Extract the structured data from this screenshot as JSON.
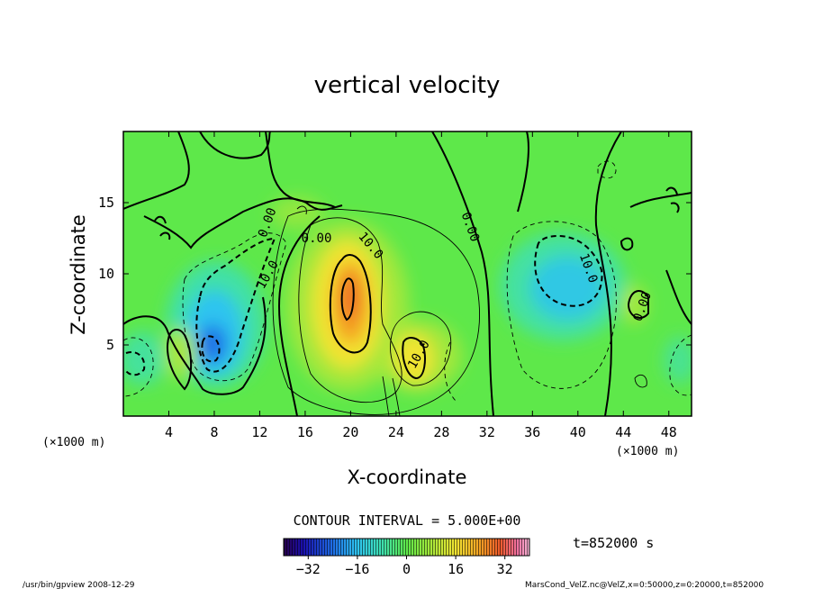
{
  "chart_data": {
    "type": "heatmap",
    "title": "vertical velocity",
    "xlabel": "X-coordinate",
    "ylabel": "Z-coordinate",
    "x_unit": "(×1000 m)",
    "y_unit": "(×1000 m)",
    "xlim": [
      0,
      50
    ],
    "ylim": [
      0,
      20
    ],
    "x_ticks": [
      4,
      8,
      12,
      16,
      20,
      24,
      28,
      32,
      36,
      40,
      44,
      48
    ],
    "y_ticks": [
      5,
      10,
      15
    ],
    "contour_interval_text": "CONTOUR INTERVAL = 5.000E+00",
    "time_text": "t=852000 s",
    "colorbar": {
      "min": -40,
      "max": 40,
      "ticks": [
        -32,
        -16,
        0,
        16,
        32
      ]
    },
    "contour_labels": [
      {
        "text": "0.00",
        "x": 13.0,
        "z": 13.5,
        "angle": -70
      },
      {
        "text": "0.00",
        "x": 17.0,
        "z": 12.2,
        "angle": 0
      },
      {
        "text": "0.00",
        "x": 30.2,
        "z": 13.2,
        "angle": 70
      },
      {
        "text": "0.00",
        "x": 46.0,
        "z": 7.6,
        "angle": -70
      },
      {
        "text": "10.0",
        "x": 13.0,
        "z": 9.8,
        "angle": -60
      },
      {
        "text": "10.0",
        "x": 21.5,
        "z": 11.8,
        "angle": 50
      },
      {
        "text": "10.0",
        "x": 26.3,
        "z": 4.2,
        "angle": -60
      },
      {
        "text": "10.0",
        "x": 40.6,
        "z": 10.3,
        "angle": 70
      }
    ],
    "field_features": [
      {
        "name": "updraft-main",
        "x": 19.7,
        "z": 7.8,
        "value": 26
      },
      {
        "name": "updraft-secondary",
        "x": 25.5,
        "z": 4.5,
        "value": 16
      },
      {
        "name": "downdraft-west",
        "x": 8.0,
        "z": 5.3,
        "value": -24
      },
      {
        "name": "downdraft-east",
        "x": 39.5,
        "z": 9.0,
        "value": -15
      },
      {
        "name": "updraft-small-west",
        "x": 5.0,
        "z": 4.5,
        "value": 10
      },
      {
        "name": "updraft-small-east",
        "x": 44.2,
        "z": 7.5,
        "value": 7
      }
    ],
    "grid": false
  },
  "footer": {
    "left": "/usr/bin/gpview  2008-12-29",
    "right": "MarsCond_VelZ.nc@VelZ,x=0:50000,z=0:20000,t=852000"
  }
}
